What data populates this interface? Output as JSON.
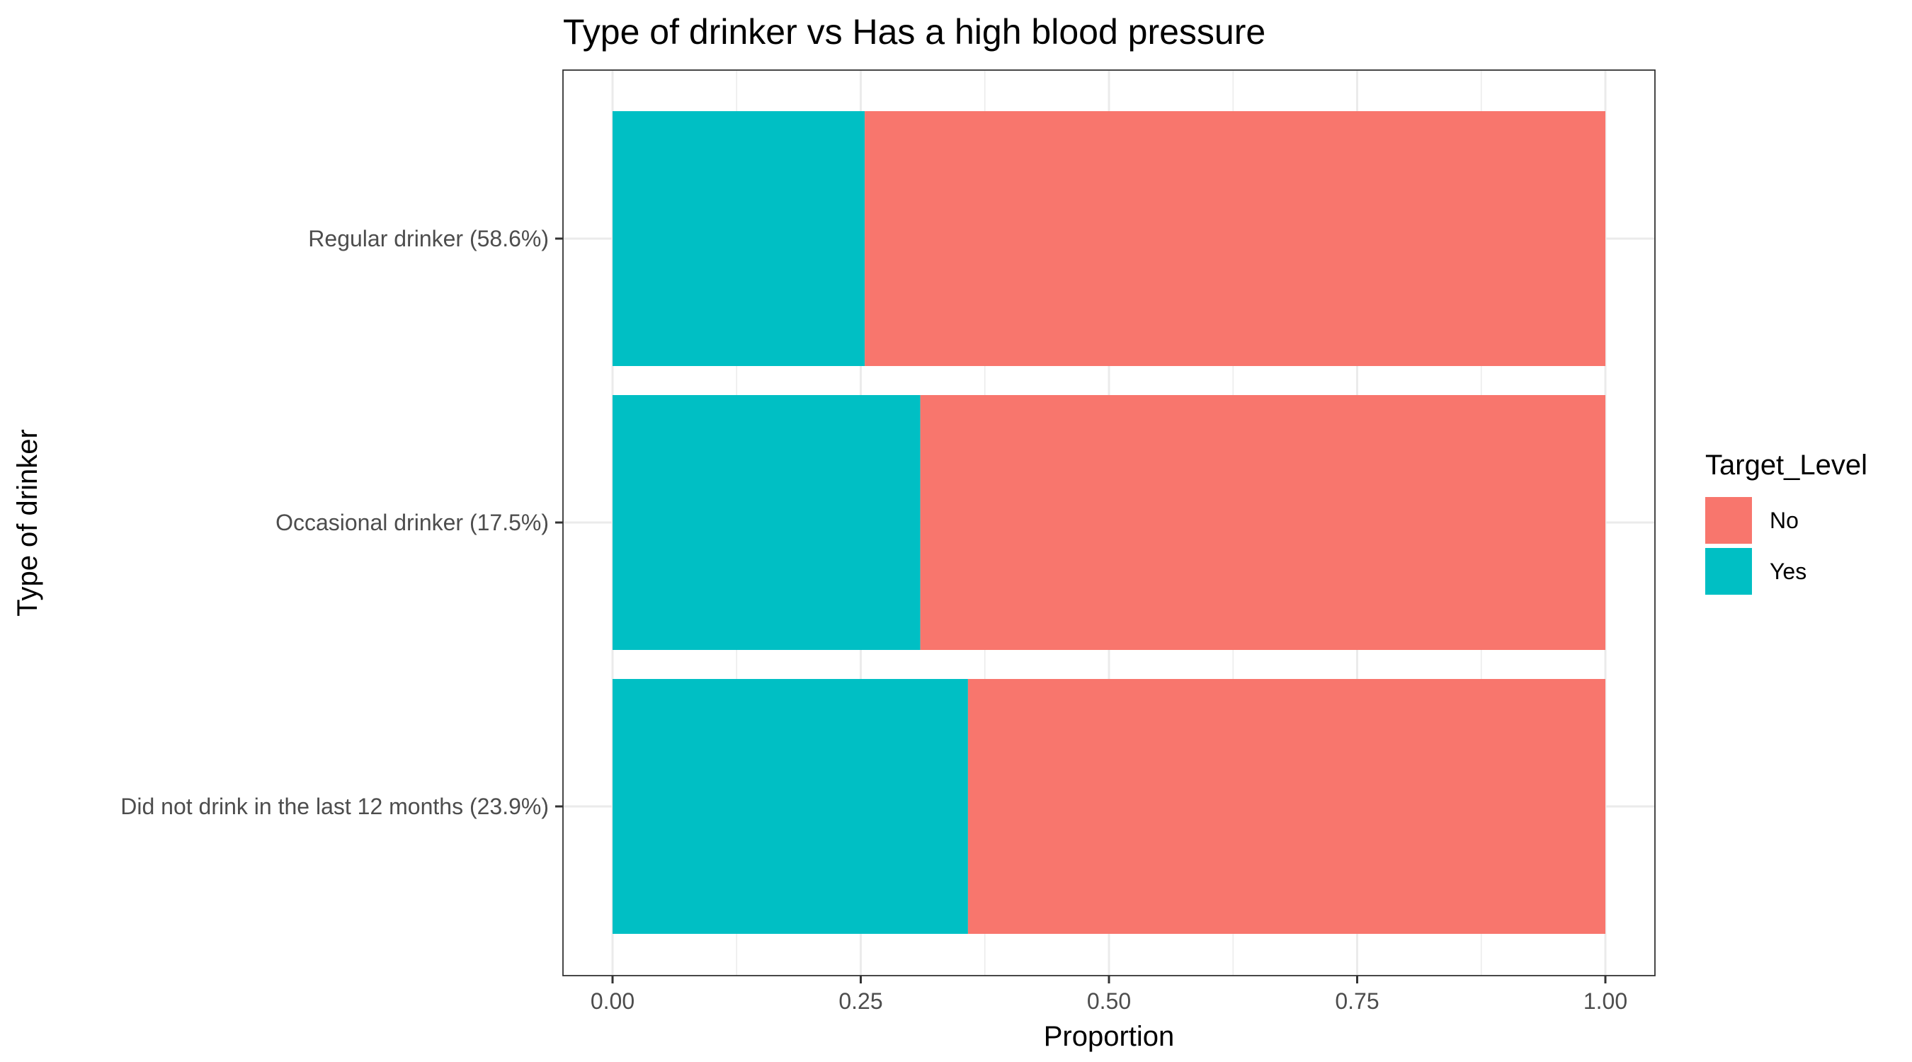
{
  "chart_data": {
    "type": "bar",
    "orientation": "horizontal",
    "stacked": true,
    "title": "Type of drinker vs Has a high blood pressure",
    "xlabel": "Proportion",
    "ylabel": "Type of drinker",
    "categories": [
      "Regular drinker (58.6%)",
      "Occasional drinker (17.5%)",
      "Did not drink in the last 12 months (23.9%)"
    ],
    "series": [
      {
        "name": "Yes",
        "values": [
          0.254,
          0.31,
          0.358
        ],
        "color": "#00BFC4"
      },
      {
        "name": "No",
        "values": [
          0.746,
          0.69,
          0.642
        ],
        "color": "#F8766D"
      }
    ],
    "xlim": [
      0,
      1
    ],
    "xticks": [
      0,
      0.25,
      0.5,
      0.75,
      1
    ],
    "xtick_labels": [
      "0.00",
      "0.25",
      "0.50",
      "0.75",
      "1.00"
    ],
    "grid": true,
    "legend": {
      "title": "Target_Level",
      "position": "right",
      "entries": [
        {
          "label": "No",
          "color": "#F8766D"
        },
        {
          "label": "Yes",
          "color": "#00BFC4"
        }
      ]
    }
  }
}
